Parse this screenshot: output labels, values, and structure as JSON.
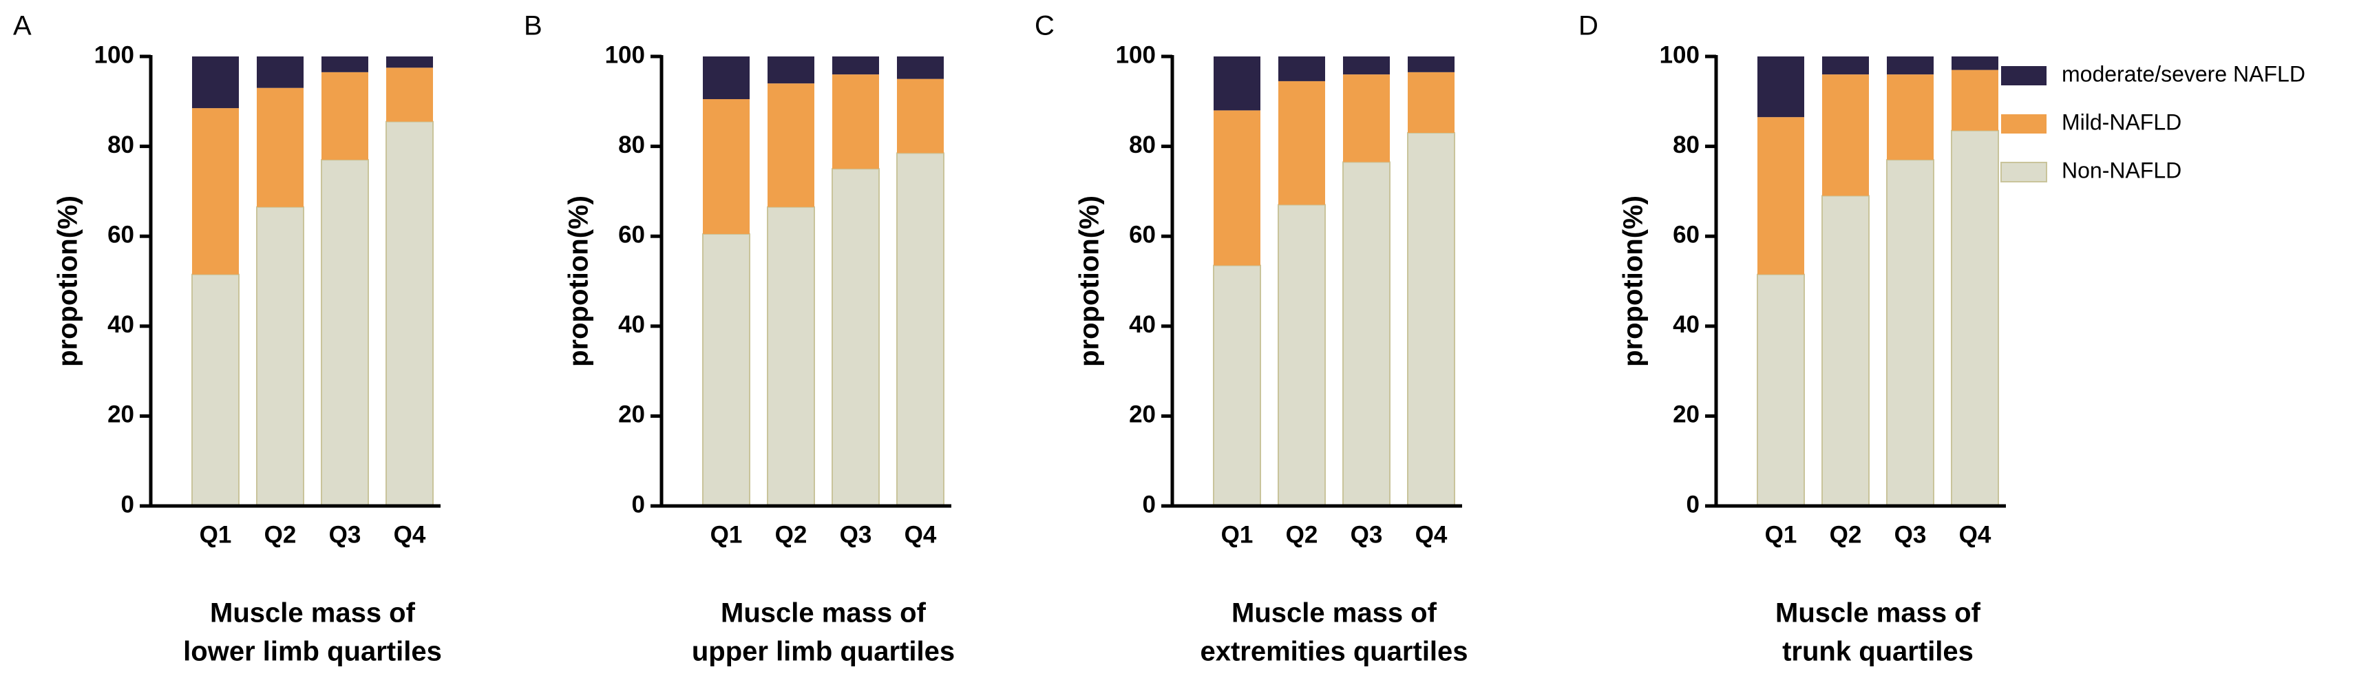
{
  "chart_data": [
    {
      "type": "stacked_bar",
      "panel": "A",
      "ylabel": "propotion(%)",
      "xlabel": [
        "Muscle mass of",
        "lower limb quartiles"
      ],
      "categories": [
        "Q1",
        "Q2",
        "Q3",
        "Q4"
      ],
      "ylim": [
        0,
        100
      ],
      "yticks": [
        0,
        20,
        40,
        60,
        80,
        100
      ],
      "series": [
        {
          "color": "#dcdccb",
          "values": [
            51.5,
            66.5,
            77,
            85.5
          ]
        },
        {
          "color": "#f0a04b",
          "values": [
            37,
            26.5,
            19.5,
            12
          ]
        },
        {
          "color": "#2b2447",
          "values": [
            11.5,
            7,
            3.5,
            2.5
          ]
        }
      ]
    },
    {
      "type": "stacked_bar",
      "panel": "B",
      "ylabel": "propotion(%)",
      "xlabel": [
        "Muscle mass of",
        "upper limb quartiles"
      ],
      "categories": [
        "Q1",
        "Q2",
        "Q3",
        "Q4"
      ],
      "ylim": [
        0,
        100
      ],
      "yticks": [
        0,
        20,
        40,
        60,
        80,
        100
      ],
      "series": [
        {
          "color": "#dcdccb",
          "values": [
            60.5,
            66.5,
            75,
            78.5
          ]
        },
        {
          "color": "#f0a04b",
          "values": [
            30,
            27.5,
            21,
            16.5
          ]
        },
        {
          "color": "#2b2447",
          "values": [
            9.5,
            6,
            4,
            5
          ]
        }
      ]
    },
    {
      "type": "stacked_bar",
      "panel": "C",
      "ylabel": "propotion(%)",
      "xlabel": [
        "Muscle mass of",
        "extremities quartiles"
      ],
      "categories": [
        "Q1",
        "Q2",
        "Q3",
        "Q4"
      ],
      "ylim": [
        0,
        100
      ],
      "yticks": [
        0,
        20,
        40,
        60,
        80,
        100
      ],
      "series": [
        {
          "color": "#dcdccb",
          "values": [
            53.5,
            67,
            76.5,
            83
          ]
        },
        {
          "color": "#f0a04b",
          "values": [
            34.5,
            27.5,
            19.5,
            13.5
          ]
        },
        {
          "color": "#2b2447",
          "values": [
            12,
            5.5,
            4,
            3.5
          ]
        }
      ]
    },
    {
      "type": "stacked_bar",
      "panel": "D",
      "ylabel": "propotion(%)",
      "xlabel": [
        "Muscle mass of",
        "trunk quartiles"
      ],
      "categories": [
        "Q1",
        "Q2",
        "Q3",
        "Q4"
      ],
      "ylim": [
        0,
        100
      ],
      "yticks": [
        0,
        20,
        40,
        60,
        80,
        100
      ],
      "series": [
        {
          "name": "Non-NAFLD",
          "color": "#dcdccb",
          "values": [
            51.5,
            69,
            77,
            83.5
          ]
        },
        {
          "name": "Mild-NAFLD",
          "color": "#f0a04b",
          "values": [
            35,
            27,
            19,
            13.5
          ]
        },
        {
          "name": "moderate/severe NAFLD",
          "color": "#2b2447",
          "values": [
            13.5,
            4,
            4,
            3
          ]
        }
      ]
    }
  ]
}
